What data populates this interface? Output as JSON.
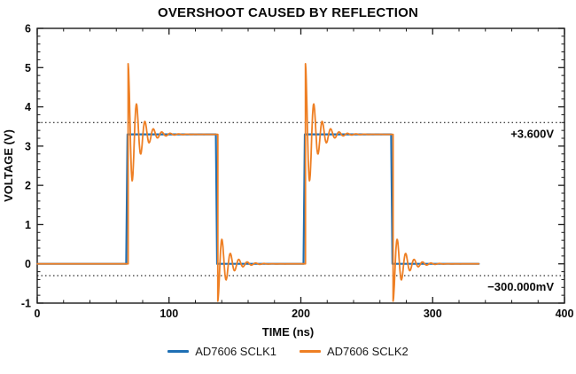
{
  "chart_data": {
    "type": "line",
    "title": "OVERSHOOT CAUSED BY REFLECTION",
    "xlabel": "TIME (ns)",
    "ylabel": "VOLTAGE (V)",
    "xlim": [
      0,
      400
    ],
    "ylim": [
      -1,
      6
    ],
    "x_ticks": [
      0,
      100,
      200,
      300,
      400
    ],
    "y_ticks": [
      -1,
      0,
      1,
      2,
      3,
      4,
      5,
      6
    ],
    "x_minor_step": 20,
    "y_minor_step": 0.2,
    "grid": false,
    "legend_position": "bottom",
    "axis_color": "#1a1a1a",
    "ref_lines": [
      {
        "value": 3.6,
        "label": "+3.600V"
      },
      {
        "value": -0.3,
        "label": "−300.000mV"
      }
    ],
    "series": [
      {
        "name": "AD7606 SCLK1",
        "color": "#1e6fb4",
        "width": 2.2,
        "points": [
          [
            0,
            0
          ],
          [
            67.5,
            0
          ],
          [
            68.5,
            3.3
          ],
          [
            135.5,
            3.3
          ],
          [
            136.5,
            0
          ],
          [
            202,
            0
          ],
          [
            203,
            3.3
          ],
          [
            268.5,
            3.3
          ],
          [
            269.5,
            0
          ],
          [
            335,
            0
          ]
        ]
      },
      {
        "name": "AD7606 SCLK2",
        "color": "#ee7f24",
        "width": 1.8,
        "square_ring": {
          "t_start": 0,
          "t_end": 335,
          "low": 0,
          "high": 3.3,
          "edges": [
            {
              "t": 69,
              "type": "rise"
            },
            {
              "t": 137,
              "type": "fall"
            },
            {
              "t": 203.5,
              "type": "rise"
            },
            {
              "t": 270,
              "type": "fall"
            }
          ],
          "ring": {
            "amp_rise": 1.8,
            "amp_fall": 0.95,
            "period_ns": 6.4,
            "decay_ns": 7.5
          }
        }
      }
    ]
  }
}
